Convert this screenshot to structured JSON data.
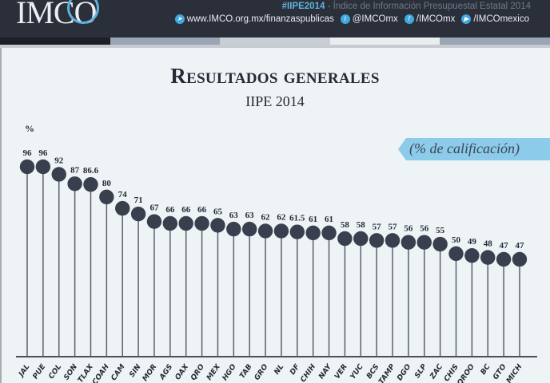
{
  "header": {
    "logo_text": "IMCO",
    "hashtag": "#IIPE2014",
    "tagline": " - Índice de Información Presupuestal Estatal 2014",
    "links": [
      {
        "icon": "telegram-icon",
        "label": "www.IMCO.org.mx/finanzaspublicas"
      },
      {
        "icon": "twitter-icon",
        "label": "@IMCOmx"
      },
      {
        "icon": "facebook-icon",
        "label": "/IMCOmx"
      },
      {
        "icon": "youtube-icon",
        "label": "/IMCOmexico"
      }
    ],
    "stripe_colors": [
      "#1c1f27",
      "#9aa6b5",
      "#c9cfd6",
      "#e9edf0",
      "#9aa6b5"
    ]
  },
  "badge": "(% de calificación)",
  "colors": {
    "dot": "#3a3f4e",
    "stem": "#5a5f6c",
    "baseline": "#4a4f5a"
  },
  "chart_data": {
    "type": "lollipop",
    "title": "Resultados generales",
    "subtitle": "IIPE 2014",
    "ylabel": "%",
    "categories": [
      "JAL",
      "PUE",
      "COL",
      "SON",
      "TLAX",
      "COAH",
      "CAM",
      "SIN",
      "MOR",
      "AGS",
      "OAX",
      "QRO",
      "MEX",
      "HGO",
      "TAB",
      "GRO",
      "NL",
      "DF",
      "CHIH",
      "NAY",
      "VER",
      "YUC",
      "BCS",
      "TAMP",
      "DGO",
      "SLP",
      "ZAC",
      "CHIS",
      "QROO",
      "BC",
      "GTO",
      "MICH"
    ],
    "values": [
      96,
      96,
      92,
      87,
      86.6,
      80,
      74,
      71,
      67,
      66,
      66,
      66,
      65,
      63,
      63,
      62,
      62,
      61.5,
      61,
      61,
      58,
      58,
      57,
      57,
      56,
      56,
      55,
      50,
      49,
      48,
      47,
      47
    ],
    "value_labels": [
      "96",
      "96",
      "92",
      "87",
      "86.6",
      "80",
      "74",
      "71",
      "67",
      "66",
      "66",
      "66",
      "65",
      "63",
      "63",
      "62",
      "62",
      "61.5",
      "61",
      "61",
      "58",
      "58",
      "57",
      "57",
      "56",
      "56",
      "55",
      "50",
      "49",
      "48",
      "47",
      "47"
    ],
    "ylim": [
      0,
      100
    ],
    "grid": false
  }
}
